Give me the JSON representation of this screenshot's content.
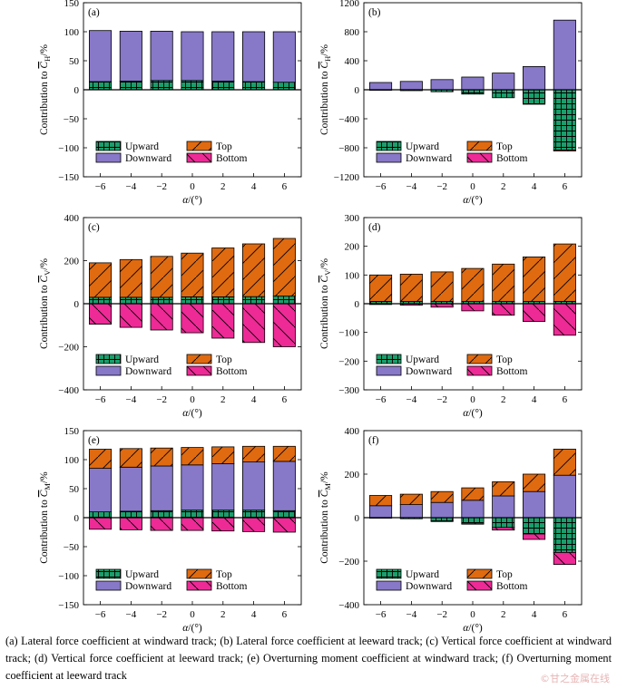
{
  "legend_labels": {
    "upward": "Upward",
    "downward": "Downward",
    "top": "Top",
    "bottom": "Bottom"
  },
  "colors": {
    "upward": "#1a9e6b",
    "downward": "#8878c8",
    "top": "#e06a10",
    "bottom": "#ee2a96"
  },
  "caption": {
    "line1": "(a) Lateral force coefficient at windward track; (b) Lateral force coefficient at",
    "line2": "leeward track; (c) Vertical force coefficient at windward track; (d) Vertical force coefficient at leeward track;",
    "line3": "(e) Overturning moment coefficient at windward track; (f) Overturning moment coefficient at leeward track"
  },
  "watermark": "©甘之金属在线",
  "chart_data": [
    {
      "panel": "(a)",
      "type": "bar",
      "stacked": true,
      "ylabel": "Contribution to C̅H/%",
      "ylabel_main": "Contribution to ",
      "ylabel_var": "C",
      "ylabel_sub": "H",
      "ylabel_unit": "/%",
      "xlabel": "α/(°)",
      "xlabel_var": "α",
      "xlabel_unit": "/(°)",
      "categories": [
        "−6",
        "−4",
        "−2",
        "0",
        "2",
        "4",
        "6"
      ],
      "ylim": [
        -150,
        150
      ],
      "yticks": [
        -150,
        -100,
        -50,
        0,
        50,
        100,
        150
      ],
      "series": [
        {
          "name": "Upward",
          "values": [
            14,
            15,
            16,
            16,
            15,
            14,
            13
          ]
        },
        {
          "name": "Downward",
          "values": [
            88,
            86,
            85,
            84,
            85,
            86,
            87
          ]
        },
        {
          "name": "Top",
          "values": [
            0,
            0,
            0,
            0,
            0,
            0,
            0
          ]
        },
        {
          "name": "Bottom",
          "values": [
            0,
            0,
            0,
            0,
            0,
            0,
            0
          ]
        }
      ]
    },
    {
      "panel": "(b)",
      "type": "bar",
      "stacked": true,
      "ylabel": "Contribution to C̅H/%",
      "ylabel_main": "Contribution to ",
      "ylabel_var": "C",
      "ylabel_sub": "H",
      "ylabel_unit": "/%",
      "xlabel": "α/(°)",
      "xlabel_var": "α",
      "xlabel_unit": "/(°)",
      "categories": [
        "−6",
        "−4",
        "−2",
        "0",
        "2",
        "4",
        "6"
      ],
      "ylim": [
        -1200,
        1200
      ],
      "yticks": [
        -1200,
        -800,
        -400,
        0,
        400,
        800,
        1200
      ],
      "series": [
        {
          "name": "Upward",
          "values": [
            -2,
            -12,
            -28,
            -60,
            -110,
            -200,
            -830
          ]
        },
        {
          "name": "Downward",
          "values": [
            100,
            115,
            140,
            175,
            230,
            320,
            960
          ]
        },
        {
          "name": "Top",
          "values": [
            0,
            0,
            0,
            0,
            0,
            0,
            -15
          ]
        },
        {
          "name": "Bottom",
          "values": [
            0,
            0,
            0,
            0,
            0,
            0,
            0
          ]
        }
      ]
    },
    {
      "panel": "(c)",
      "type": "bar",
      "stacked": true,
      "ylabel": "Contribution to C̅V/%",
      "ylabel_main": "Contribution to ",
      "ylabel_var": "C",
      "ylabel_sub": "V",
      "ylabel_unit": "/%",
      "xlabel": "α/(°)",
      "xlabel_var": "α",
      "xlabel_unit": "/(°)",
      "categories": [
        "−6",
        "−4",
        "−2",
        "0",
        "2",
        "4",
        "6"
      ],
      "ylim": [
        -400,
        400
      ],
      "yticks": [
        -400,
        -200,
        0,
        200,
        400
      ],
      "series": [
        {
          "name": "Upward",
          "values": [
            30,
            30,
            30,
            32,
            32,
            33,
            35
          ]
        },
        {
          "name": "Downward",
          "values": [
            0,
            0,
            0,
            0,
            0,
            0,
            0
          ]
        },
        {
          "name": "Top",
          "values": [
            160,
            175,
            190,
            203,
            227,
            245,
            268
          ]
        },
        {
          "name": "Bottom",
          "values": [
            -95,
            -110,
            -122,
            -135,
            -160,
            -180,
            -200
          ]
        }
      ]
    },
    {
      "panel": "(d)",
      "type": "bar",
      "stacked": true,
      "ylabel": "Contribution to C̅V/%",
      "ylabel_main": "Contribution to ",
      "ylabel_var": "C",
      "ylabel_sub": "V",
      "ylabel_unit": "/%",
      "xlabel": "α/(°)",
      "xlabel_var": "α",
      "xlabel_unit": "/(°)",
      "categories": [
        "−6",
        "−4",
        "−2",
        "0",
        "2",
        "4",
        "6"
      ],
      "ylim": [
        -300,
        300
      ],
      "yticks": [
        -300,
        -200,
        -100,
        0,
        100,
        200,
        300
      ],
      "series": [
        {
          "name": "Upward",
          "values": [
            8,
            8,
            8,
            8,
            8,
            8,
            8
          ]
        },
        {
          "name": "Downward",
          "values": [
            0,
            0,
            0,
            0,
            0,
            0,
            0
          ]
        },
        {
          "name": "Top",
          "values": [
            92,
            95,
            103,
            115,
            130,
            155,
            200
          ]
        },
        {
          "name": "Bottom",
          "values": [
            -3,
            -5,
            -12,
            -25,
            -40,
            -62,
            -110
          ]
        }
      ]
    },
    {
      "panel": "(e)",
      "type": "bar",
      "stacked": true,
      "ylabel": "Contribution to C̅M/%",
      "ylabel_main": "Contribution to ",
      "ylabel_var": "C",
      "ylabel_sub": "M",
      "ylabel_unit": "/%",
      "xlabel": "α/(°)",
      "xlabel_var": "α",
      "xlabel_unit": "/(°)",
      "categories": [
        "−6",
        "−4",
        "−2",
        "0",
        "2",
        "4",
        "6"
      ],
      "ylim": [
        -150,
        150
      ],
      "yticks": [
        -150,
        -100,
        -50,
        0,
        50,
        100,
        150
      ],
      "series": [
        {
          "name": "Upward",
          "values": [
            10,
            11,
            12,
            13,
            13,
            13,
            12
          ]
        },
        {
          "name": "Downward",
          "values": [
            75,
            76,
            77,
            78,
            80,
            83,
            85
          ]
        },
        {
          "name": "Top",
          "values": [
            33,
            32,
            31,
            30,
            29,
            27,
            26
          ]
        },
        {
          "name": "Bottom",
          "values": [
            -20,
            -21,
            -22,
            -22,
            -23,
            -24,
            -25
          ]
        }
      ]
    },
    {
      "panel": "(f)",
      "type": "bar",
      "stacked": true,
      "ylabel": "Contribution to C̅M/%",
      "ylabel_main": "Contribution to ",
      "ylabel_var": "C",
      "ylabel_sub": "M",
      "ylabel_unit": "/%",
      "xlabel": "α/(°)",
      "xlabel_var": "α",
      "xlabel_unit": "/(°)",
      "categories": [
        "−6",
        "−4",
        "−2",
        "0",
        "2",
        "4",
        "6"
      ],
      "ylim": [
        -400,
        400
      ],
      "yticks": [
        -400,
        -200,
        0,
        200,
        400
      ],
      "series": [
        {
          "name": "Upward",
          "values": [
            -2,
            -5,
            -15,
            -25,
            -45,
            -75,
            -160
          ]
        },
        {
          "name": "Downward",
          "values": [
            55,
            60,
            70,
            80,
            100,
            120,
            195
          ]
        },
        {
          "name": "Top",
          "values": [
            47,
            48,
            50,
            57,
            65,
            80,
            120
          ]
        },
        {
          "name": "Bottom",
          "values": [
            0,
            0,
            -3,
            -5,
            -12,
            -25,
            -55
          ]
        }
      ]
    }
  ]
}
